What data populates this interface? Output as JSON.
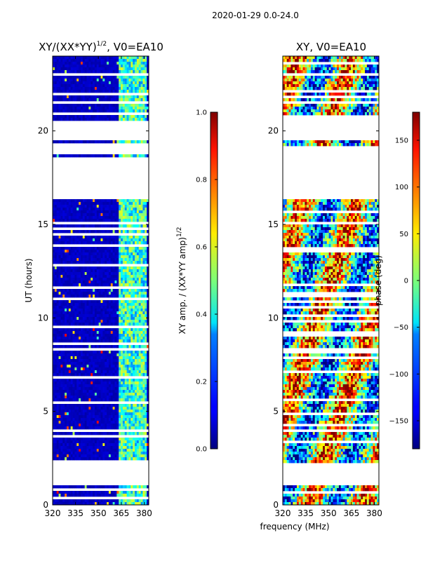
{
  "chart_data": [
    {
      "type": "heatmap",
      "title": "XY/(XX*YY)",
      "title_superscript": "1/2",
      "title_suffix": ", V0=EA10",
      "xlabel": "frequency (MHz)",
      "ylabel": "UT (hours)",
      "xlim": [
        320,
        383
      ],
      "ylim": [
        0,
        24
      ],
      "xticks": [
        "320",
        "335",
        "350",
        "365",
        "380"
      ],
      "xtick_values": [
        320,
        335,
        350,
        365,
        380
      ],
      "yticks": [
        "0",
        "5",
        "10",
        "15",
        "20"
      ],
      "ytick_values": [
        0,
        5,
        10,
        15,
        20
      ],
      "colorscale": "jet",
      "colorbar": {
        "label": "XY amp. / (XX*YY amp)",
        "label_superscript": "1/2",
        "range": [
          0.0,
          1.0
        ],
        "ticks": [
          "0.0",
          "0.2",
          "0.4",
          "0.6",
          "0.8",
          "1.0"
        ],
        "tick_values": [
          0.0,
          0.2,
          0.4,
          0.6,
          0.8,
          1.0
        ]
      },
      "flagged_gaps_hours": [
        [
          1.1,
          1.6
        ],
        [
          1.7,
          2.3
        ],
        [
          16.4,
          18.6
        ],
        [
          18.7,
          19.2
        ],
        [
          19.5,
          20.5
        ]
      ]
    },
    {
      "type": "heatmap",
      "title": "XY, V0=EA10",
      "xlabel": "frequency (MHz)",
      "ylabel": "",
      "xlim": [
        320,
        383
      ],
      "ylim": [
        0,
        24
      ],
      "xticks": [
        "320",
        "335",
        "350",
        "365",
        "380"
      ],
      "xtick_values": [
        320,
        335,
        350,
        365,
        380
      ],
      "yticks": [
        "0",
        "5",
        "10",
        "15",
        "20"
      ],
      "ytick_values": [
        0,
        5,
        10,
        15,
        20
      ],
      "colorscale": "jet",
      "colorbar": {
        "label": "phase (deg)",
        "range": [
          -180,
          180
        ],
        "ticks": [
          "−150",
          "−100",
          "−50",
          "0",
          "50",
          "100",
          "150"
        ],
        "tick_values": [
          -150,
          -100,
          -50,
          0,
          50,
          100,
          150
        ]
      },
      "flagged_gaps_hours": [
        [
          1.1,
          1.6
        ],
        [
          1.7,
          2.3
        ],
        [
          16.4,
          18.6
        ],
        [
          18.7,
          19.2
        ],
        [
          19.5,
          20.5
        ]
      ]
    }
  ],
  "figure": {
    "suptitle": "2020-01-29 0.0-24.0",
    "shared_xlabel": "frequency (MHz)"
  }
}
